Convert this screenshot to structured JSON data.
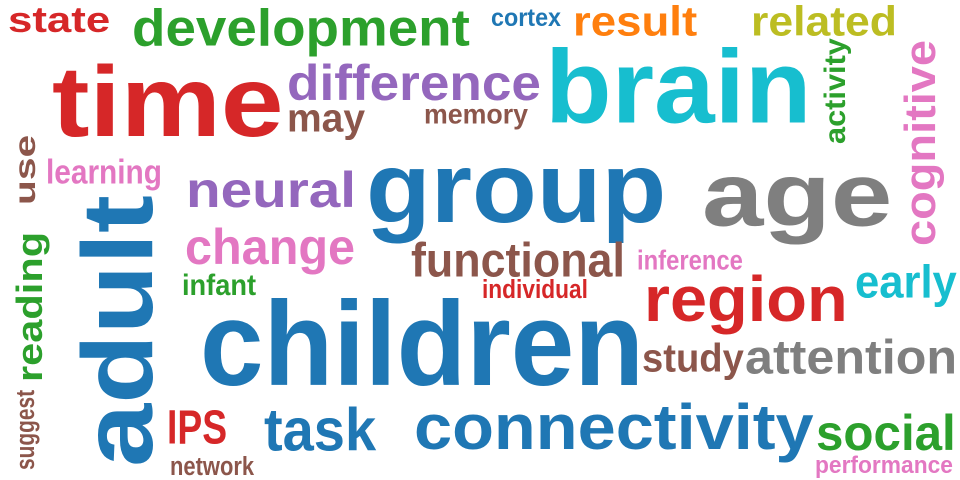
{
  "words": [
    {
      "id": "state",
      "text": "state",
      "color": "#d62728"
    },
    {
      "id": "development",
      "text": "development",
      "color": "#2ca02c"
    },
    {
      "id": "cortex",
      "text": "cortex",
      "color": "#1f77b4"
    },
    {
      "id": "result",
      "text": "result",
      "color": "#ff7f0e"
    },
    {
      "id": "related",
      "text": "related",
      "color": "#bcbd22"
    },
    {
      "id": "time",
      "text": "time",
      "color": "#d62728"
    },
    {
      "id": "difference",
      "text": "difference",
      "color": "#9467bd"
    },
    {
      "id": "brain",
      "text": "brain",
      "color": "#17becf"
    },
    {
      "id": "activity",
      "text": "activity",
      "color": "#2ca02c"
    },
    {
      "id": "cognitive",
      "text": "cognitive",
      "color": "#e377c2"
    },
    {
      "id": "may",
      "text": "may",
      "color": "#8c564b"
    },
    {
      "id": "memory",
      "text": "memory",
      "color": "#8c564b"
    },
    {
      "id": "use",
      "text": "use",
      "color": "#8c564b"
    },
    {
      "id": "learning",
      "text": "learning",
      "color": "#e377c2"
    },
    {
      "id": "group",
      "text": "group",
      "color": "#1f77b4"
    },
    {
      "id": "age",
      "text": "age",
      "color": "#7f7f7f"
    },
    {
      "id": "neural",
      "text": "neural",
      "color": "#9467bd"
    },
    {
      "id": "adult",
      "text": "adult",
      "color": "#1f77b4"
    },
    {
      "id": "suggest",
      "text": "suggest",
      "color": "#8c564b"
    },
    {
      "id": "reading",
      "text": "reading",
      "color": "#2ca02c"
    },
    {
      "id": "change",
      "text": "change",
      "color": "#e377c2"
    },
    {
      "id": "functional",
      "text": "functional",
      "color": "#8c564b"
    },
    {
      "id": "inference",
      "text": "inference",
      "color": "#e377c2"
    },
    {
      "id": "early",
      "text": "early",
      "color": "#17becf"
    },
    {
      "id": "infant",
      "text": "infant",
      "color": "#2ca02c"
    },
    {
      "id": "individual",
      "text": "individual",
      "color": "#d62728"
    },
    {
      "id": "region",
      "text": "region",
      "color": "#d62728"
    },
    {
      "id": "children",
      "text": "children",
      "color": "#1f77b4"
    },
    {
      "id": "study",
      "text": "study",
      "color": "#8c564b"
    },
    {
      "id": "attention",
      "text": "attention",
      "color": "#7f7f7f"
    },
    {
      "id": "IPS",
      "text": "IPS",
      "color": "#d62728"
    },
    {
      "id": "task",
      "text": "task",
      "color": "#1f77b4"
    },
    {
      "id": "connectivity",
      "text": "connectivity",
      "color": "#1f77b4"
    },
    {
      "id": "social",
      "text": "social",
      "color": "#2ca02c"
    },
    {
      "id": "network",
      "text": "network",
      "color": "#8c564b"
    },
    {
      "id": "performance",
      "text": "performance",
      "color": "#e377c2"
    }
  ]
}
